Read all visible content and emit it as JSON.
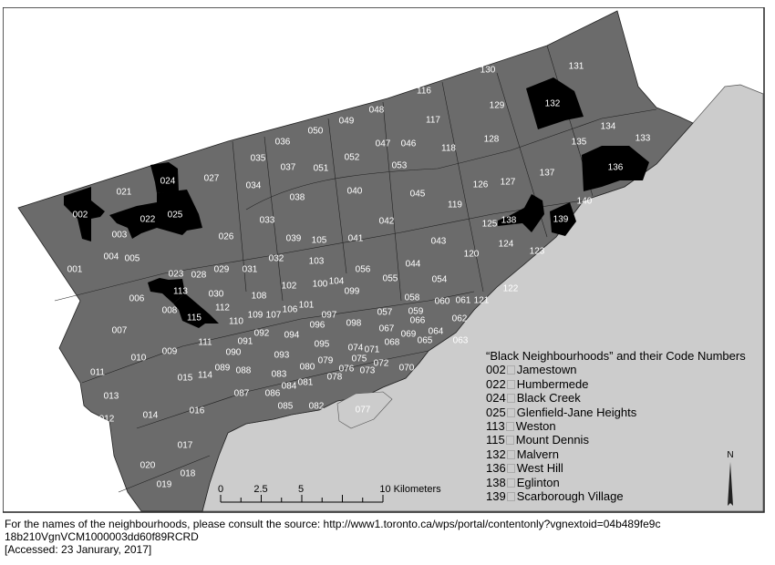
{
  "map": {
    "colors": {
      "neighbourhood": "#6b6b6b",
      "highlight": "#000000",
      "lake": "#cccccc",
      "outside": "#ffffff",
      "boundary": "#222222",
      "label": "#ffffff"
    },
    "highlighted_codes": [
      "002",
      "022",
      "024",
      "025",
      "113",
      "115",
      "132",
      "136",
      "138",
      "139"
    ],
    "codes": [
      "001",
      "002",
      "003",
      "004",
      "005",
      "006",
      "007",
      "008",
      "009",
      "010",
      "011",
      "012",
      "013",
      "014",
      "015",
      "016",
      "017",
      "018",
      "019",
      "020",
      "021",
      "022",
      "023",
      "024",
      "025",
      "026",
      "027",
      "028",
      "029",
      "030",
      "031",
      "032",
      "033",
      "034",
      "035",
      "036",
      "037",
      "038",
      "039",
      "040",
      "041",
      "042",
      "043",
      "044",
      "045",
      "046",
      "047",
      "048",
      "049",
      "050",
      "051",
      "052",
      "053",
      "054",
      "055",
      "056",
      "057",
      "058",
      "059",
      "060",
      "061",
      "062",
      "063",
      "064",
      "065",
      "066",
      "067",
      "068",
      "069",
      "070",
      "071",
      "072",
      "073",
      "074",
      "075",
      "076",
      "077",
      "078",
      "079",
      "080",
      "081",
      "082",
      "083",
      "084",
      "085",
      "086",
      "087",
      "088",
      "089",
      "090",
      "091",
      "092",
      "093",
      "094",
      "095",
      "096",
      "097",
      "098",
      "099",
      "100",
      "101",
      "102",
      "103",
      "104",
      "105",
      "106",
      "107",
      "108",
      "109",
      "110",
      "111",
      "112",
      "113",
      "114",
      "115",
      "116",
      "117",
      "118",
      "119",
      "120",
      "121",
      "122",
      "123",
      "124",
      "125",
      "126",
      "127",
      "128",
      "129",
      "130",
      "131",
      "132",
      "133",
      "134",
      "135",
      "136",
      "137",
      "138",
      "139",
      "140"
    ]
  },
  "legend": {
    "title": "“Black Neighbourhoods” and their Code Numbers",
    "items": [
      {
        "code": "002",
        "name": "Jamestown"
      },
      {
        "code": "022",
        "name": "Humbermede"
      },
      {
        "code": "024",
        "name": "Black Creek"
      },
      {
        "code": "025",
        "name": "Glenfield-Jane Heights"
      },
      {
        "code": "113",
        "name": "Weston"
      },
      {
        "code": "115",
        "name": "Mount Dennis"
      },
      {
        "code": "132",
        "name": "Malvern"
      },
      {
        "code": "136",
        "name": "West Hill"
      },
      {
        "code": "138",
        "name": "Eglinton"
      },
      {
        "code": "139",
        "name": "Scarborough Village"
      }
    ]
  },
  "scale_bar": {
    "ticks": [
      "0",
      "2.5",
      "5",
      "10 Kilometers"
    ]
  },
  "north_arrow": {
    "label": "N"
  },
  "caption": {
    "line1": "For the names of the neighbourhoods, please consult the source: http://www1.toronto.ca/wps/portal/contentonly?vgnextoid=04b489fe9c",
    "line2": "18b210VgnVCM1000003dd60f89RCRD",
    "line3": "[Accessed: 23 Janurary, 2017]"
  }
}
